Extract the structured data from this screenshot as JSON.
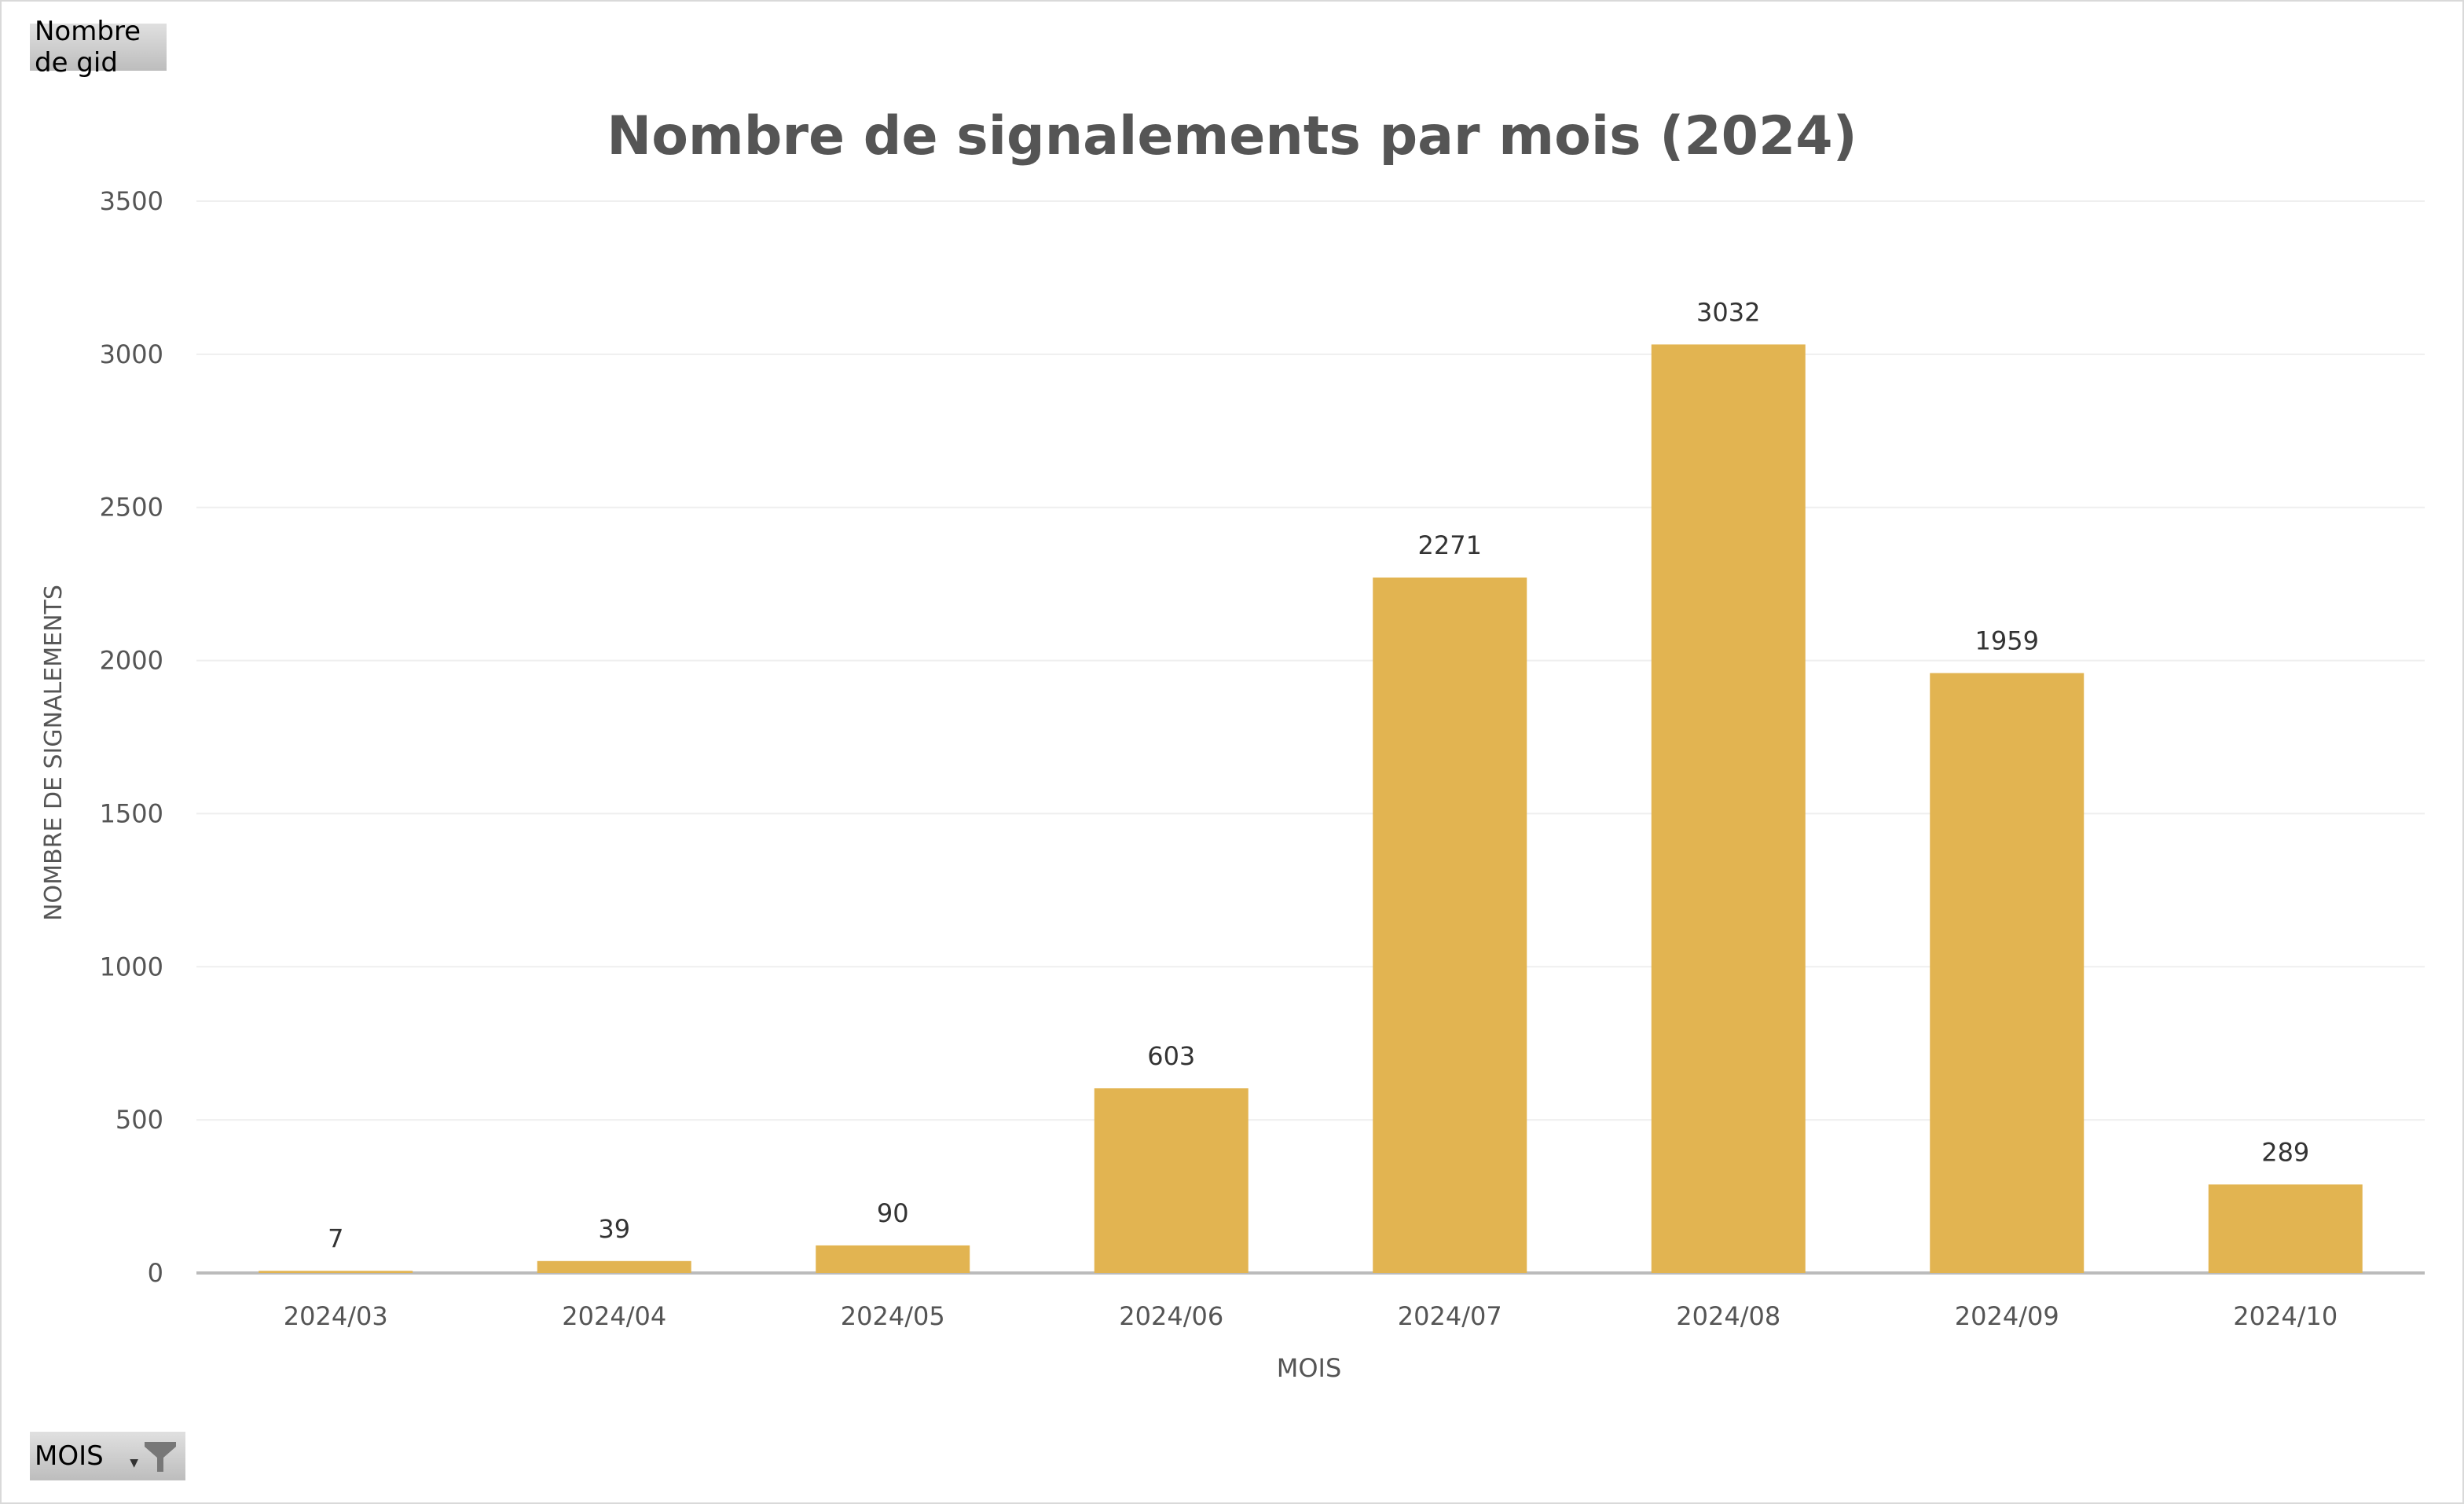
{
  "measure_label": "Nombre de gid",
  "dimension_label": "MOIS",
  "colors": {
    "bar": "#E2B451",
    "title": "#555555",
    "axis_text": "#555555"
  },
  "chart_data": {
    "type": "bar",
    "title": "Nombre de signalements par mois (2024)",
    "xlabel": "MOIS",
    "ylabel": "NOMBRE DE SIGNALEMENTS",
    "categories": [
      "2024/03",
      "2024/04",
      "2024/05",
      "2024/06",
      "2024/07",
      "2024/08",
      "2024/09",
      "2024/10"
    ],
    "values": [
      7,
      39,
      90,
      603,
      2271,
      3032,
      1959,
      289
    ],
    "ylim": [
      0,
      3500
    ],
    "yticks": [
      0,
      500,
      1000,
      1500,
      2000,
      2500,
      3000,
      3500
    ],
    "grid": true,
    "legend": "none"
  }
}
